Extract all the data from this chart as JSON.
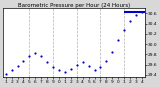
{
  "title": "Barometric Pressure per Hour (24 Hours)",
  "background_color": "#d8d8d8",
  "plot_bg_color": "#ffffff",
  "dot_color": "#0000cc",
  "line_color": "#0000cc",
  "grid_color": "#b0b0b0",
  "ylabel_color": "#000000",
  "ylim": [
    29.35,
    30.7
  ],
  "xlim": [
    0.5,
    24.5
  ],
  "yticks": [
    29.4,
    29.6,
    29.8,
    30.0,
    30.2,
    30.4,
    30.6
  ],
  "ytick_labels": [
    "29.4",
    "29.6",
    "29.8",
    "30.0",
    "30.2",
    "30.4",
    "30.6"
  ],
  "vgrid_positions": [
    5,
    9,
    13,
    17,
    21
  ],
  "pressure_x": [
    1,
    2,
    3,
    4,
    5,
    6,
    7,
    8,
    9,
    10,
    11,
    12,
    13,
    14,
    15,
    16,
    17,
    18,
    19,
    20,
    21,
    22,
    23,
    24
  ],
  "pressure_y": [
    29.42,
    29.5,
    29.58,
    29.68,
    29.76,
    29.82,
    29.76,
    29.65,
    29.55,
    29.5,
    29.46,
    29.52,
    29.6,
    29.65,
    29.58,
    29.5,
    29.55,
    29.68,
    29.85,
    30.08,
    30.28,
    30.45,
    30.57,
    30.63
  ],
  "hline_x_start": 21,
  "hline_x_end": 24.5,
  "hline_y": 30.63,
  "marker_size": 2.5,
  "title_fontsize": 4.0,
  "tick_fontsize": 3.2,
  "ylabel_fontsize": 3.2,
  "right_axis": true
}
